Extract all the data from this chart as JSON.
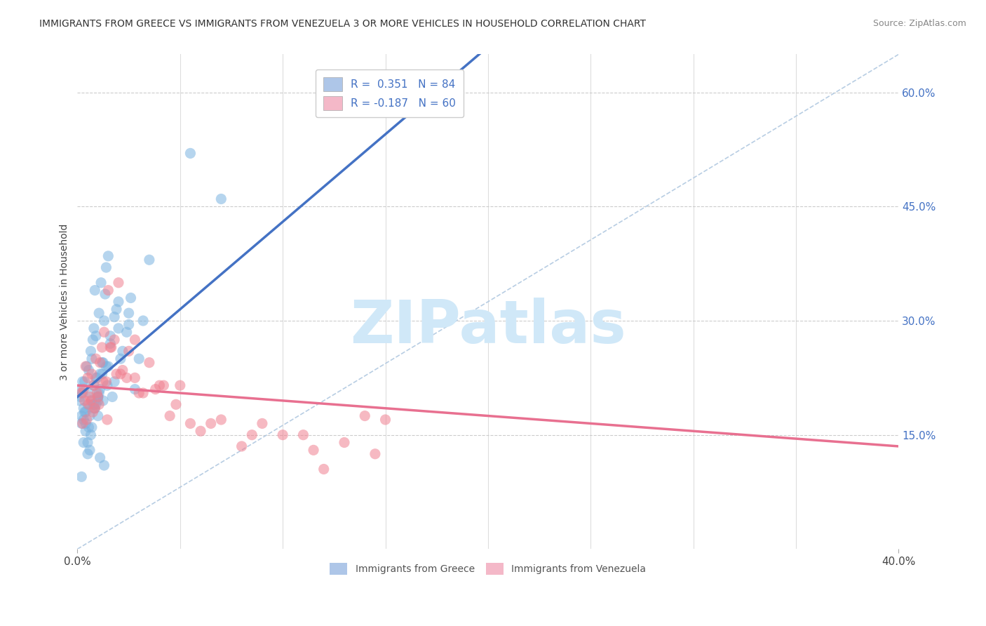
{
  "title": "IMMIGRANTS FROM GREECE VS IMMIGRANTS FROM VENEZUELA 3 OR MORE VEHICLES IN HOUSEHOLD CORRELATION CHART",
  "source": "Source: ZipAtlas.com",
  "ylabel": "3 or more Vehicles in Household",
  "x_tick_labels": [
    "0.0%",
    "40.0%"
  ],
  "x_tick_values": [
    0.0,
    40.0
  ],
  "x_minor_ticks": [
    5.0,
    10.0,
    15.0,
    20.0,
    25.0,
    30.0,
    35.0
  ],
  "y_tick_labels_right": [
    "15.0%",
    "30.0%",
    "45.0%",
    "60.0%"
  ],
  "y_tick_values_right": [
    15.0,
    30.0,
    45.0,
    60.0
  ],
  "xlim": [
    0.0,
    40.0
  ],
  "ylim": [
    0.0,
    65.0
  ],
  "legend_entry_1": "R =  0.351   N = 84",
  "legend_entry_2": "R = -0.187   N = 60",
  "legend_color_1": "#aec6e8",
  "legend_color_2": "#f4b8c8",
  "scatter_color_greece": "#7ab3e0",
  "scatter_color_venezuela": "#f08090",
  "trendline_color_greece": "#4472c4",
  "trendline_color_venezuela": "#e87090",
  "trendline_greece_x0": 0.0,
  "trendline_greece_y0": 20.0,
  "trendline_greece_x1": 10.0,
  "trendline_greece_y1": 43.0,
  "trendline_venezuela_x0": 0.0,
  "trendline_venezuela_y0": 21.5,
  "trendline_venezuela_x1": 40.0,
  "trendline_venezuela_y1": 13.5,
  "diag_x0": 0.0,
  "diag_y0": 0.0,
  "diag_x1": 40.0,
  "diag_y1": 65.0,
  "watermark": "ZIPatlas",
  "watermark_color": "#d0e8f8",
  "background_color": "#ffffff",
  "legend_label_1": "Immigrants from Greece",
  "legend_label_2": "Immigrants from Venezuela",
  "greece_x": [
    0.1,
    0.15,
    0.2,
    0.25,
    0.3,
    0.35,
    0.4,
    0.45,
    0.5,
    0.55,
    0.6,
    0.65,
    0.7,
    0.75,
    0.8,
    0.85,
    0.9,
    0.95,
    1.0,
    1.05,
    1.1,
    1.15,
    1.2,
    1.25,
    1.3,
    1.35,
    1.4,
    1.5,
    1.6,
    1.7,
    1.8,
    1.9,
    2.0,
    2.1,
    2.2,
    2.4,
    2.6,
    2.8,
    3.0,
    3.2,
    0.2,
    0.3,
    0.4,
    0.5,
    0.6,
    0.7,
    0.8,
    0.9,
    1.0,
    1.1,
    1.2,
    1.4,
    1.6,
    1.8,
    2.0,
    0.15,
    0.25,
    0.35,
    0.55,
    0.65,
    0.75,
    0.85,
    1.05,
    1.25,
    1.45,
    2.5,
    3.5,
    0.3,
    0.5,
    0.7,
    0.9,
    1.1,
    1.3,
    5.5,
    0.4,
    0.8,
    1.5,
    0.2,
    1.0,
    2.5,
    0.6,
    1.0,
    0.8,
    7.0
  ],
  "greece_y": [
    19.5,
    21.0,
    17.5,
    20.5,
    18.5,
    22.0,
    18.0,
    24.0,
    19.0,
    23.5,
    20.5,
    26.0,
    25.0,
    27.5,
    29.0,
    34.0,
    28.0,
    22.5,
    20.0,
    31.0,
    23.0,
    35.0,
    24.5,
    19.5,
    30.0,
    33.5,
    37.0,
    38.5,
    28.0,
    20.0,
    22.0,
    31.5,
    32.5,
    25.0,
    26.0,
    28.5,
    33.0,
    21.0,
    25.0,
    30.0,
    16.5,
    17.0,
    15.5,
    14.0,
    13.0,
    19.5,
    21.5,
    22.5,
    17.5,
    21.0,
    23.0,
    24.0,
    27.0,
    30.5,
    29.0,
    20.0,
    22.0,
    18.0,
    16.0,
    15.0,
    19.0,
    18.5,
    20.5,
    24.5,
    21.5,
    29.5,
    38.0,
    14.0,
    12.5,
    16.0,
    19.0,
    12.0,
    11.0,
    52.0,
    16.5,
    19.0,
    24.0,
    9.5,
    19.5,
    31.0,
    17.5,
    20.0,
    18.5,
    46.0
  ],
  "venezuela_x": [
    0.2,
    0.3,
    0.4,
    0.5,
    0.6,
    0.7,
    0.8,
    0.9,
    1.0,
    1.1,
    1.2,
    1.3,
    1.4,
    1.5,
    1.6,
    1.8,
    2.0,
    2.2,
    2.5,
    2.8,
    3.0,
    3.5,
    4.0,
    4.5,
    5.0,
    5.5,
    6.0,
    7.0,
    8.0,
    9.0,
    10.0,
    11.0,
    12.0,
    13.0,
    14.0,
    15.0,
    0.35,
    0.55,
    0.75,
    0.95,
    1.25,
    1.65,
    2.1,
    2.8,
    3.8,
    4.8,
    6.5,
    8.5,
    11.5,
    14.5,
    0.25,
    0.45,
    0.65,
    0.85,
    1.05,
    1.45,
    1.9,
    2.4,
    3.2,
    4.2
  ],
  "venezuela_y": [
    20.5,
    21.0,
    24.0,
    22.5,
    20.0,
    23.0,
    21.5,
    25.0,
    20.0,
    24.5,
    26.5,
    28.5,
    22.0,
    34.0,
    26.5,
    27.5,
    35.0,
    23.5,
    26.0,
    22.5,
    20.5,
    24.5,
    21.5,
    17.5,
    21.5,
    16.5,
    15.5,
    17.0,
    13.5,
    16.5,
    15.0,
    15.0,
    10.5,
    14.0,
    17.5,
    17.0,
    19.5,
    19.0,
    18.0,
    20.5,
    22.0,
    26.5,
    23.0,
    27.5,
    21.0,
    19.0,
    16.5,
    15.0,
    13.0,
    12.5,
    16.5,
    17.0,
    19.5,
    18.5,
    19.0,
    17.0,
    23.0,
    22.5,
    20.5,
    21.5
  ]
}
